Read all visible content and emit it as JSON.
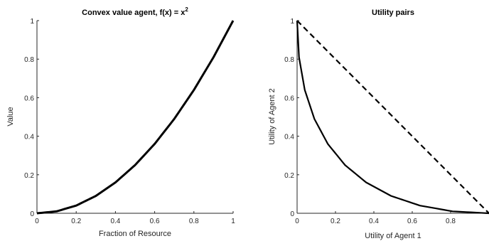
{
  "chart_data": [
    {
      "type": "line",
      "title": "Convex value agent, f(x) = x",
      "title_superscript": "2",
      "xlabel": "Fraction of Resource",
      "ylabel": "Value",
      "xlim": [
        0,
        1
      ],
      "ylim": [
        0,
        1
      ],
      "xticks": [
        "0",
        "0.2",
        "0.4",
        "0.6",
        "0.8",
        "1"
      ],
      "yticks": [
        "0",
        "0.2",
        "0.4",
        "0.6",
        "0.8",
        "1"
      ],
      "grid": false,
      "series": [
        {
          "style": "solid",
          "x": [
            0,
            0.1,
            0.2,
            0.3,
            0.4,
            0.5,
            0.6,
            0.7,
            0.8,
            0.9,
            1.0
          ],
          "y": [
            0,
            0.01,
            0.04,
            0.09,
            0.16,
            0.25,
            0.36,
            0.49,
            0.64,
            0.81,
            1.0
          ]
        }
      ]
    },
    {
      "type": "line",
      "title": "Utility pairs",
      "xlabel": "Utility of Agent 1",
      "ylabel": "Utility of Agent 2",
      "xlim": [
        0,
        1
      ],
      "ylim": [
        0,
        1
      ],
      "xticks": [
        "0",
        "0.2",
        "0.4",
        "0.6",
        "0.8"
      ],
      "yticks": [
        "0",
        "0.2",
        "0.4",
        "0.6",
        "0.8",
        "1"
      ],
      "grid": false,
      "series": [
        {
          "style": "solid",
          "x": [
            0,
            0.01,
            0.04,
            0.09,
            0.16,
            0.25,
            0.36,
            0.49,
            0.64,
            0.81,
            1.0
          ],
          "y": [
            1.0,
            0.81,
            0.64,
            0.49,
            0.36,
            0.25,
            0.16,
            0.09,
            0.04,
            0.01,
            0
          ]
        },
        {
          "style": "dashed",
          "x": [
            0,
            1
          ],
          "y": [
            1,
            0
          ]
        }
      ]
    }
  ]
}
